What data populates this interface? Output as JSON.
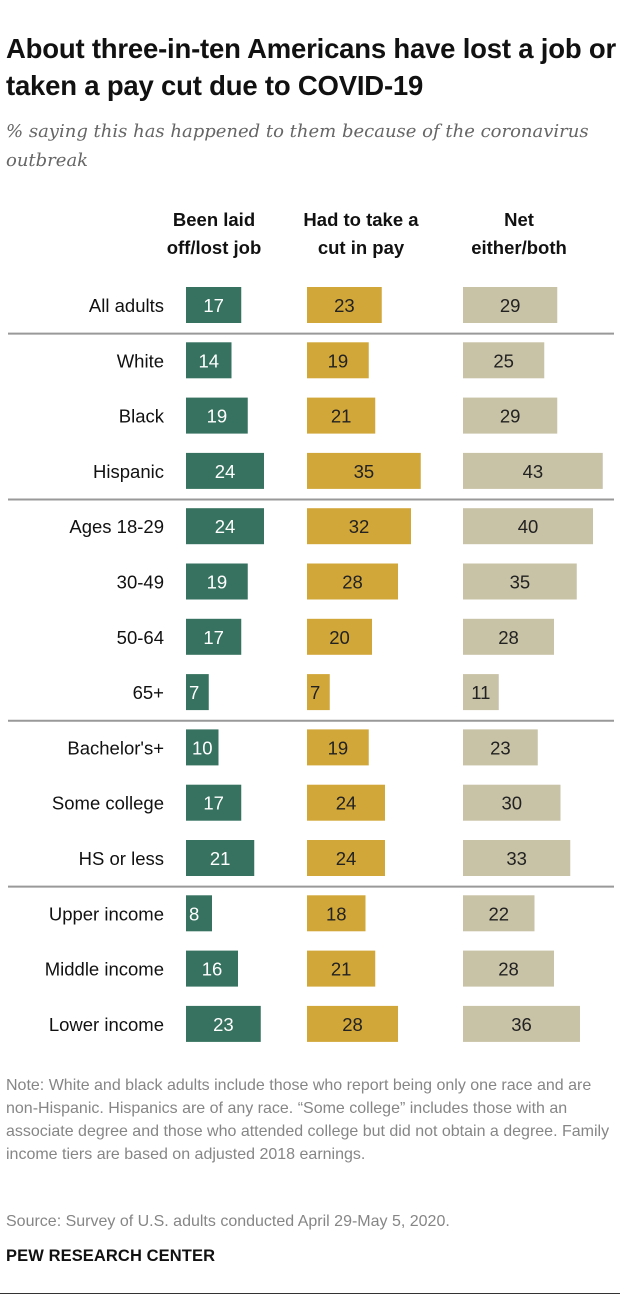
{
  "title": "About three-in-ten Americans have lost a job or taken a pay cut due to COVID-19",
  "subtitle": "% saying this has happened to them because of the coronavirus outbreak",
  "note": "Note: White and black adults include those who report being only one race and are non-Hispanic. Hispanics are of any race. “Some college” includes those with an associate degree and those who attended college but did not obtain a degree. Family income tiers are based on adjusted 2018 earnings.",
  "source": "Source: Survey of U.S. adults conducted April 29-May 5, 2020.",
  "brand": "PEW RESEARCH CENTER",
  "colors": {
    "laid_off": "#36725f",
    "pay_cut": "#d2a73a",
    "net": "#c8c2a6",
    "label_on_dark": "#ffffff",
    "label_on_light": "#222222",
    "divider": "#999999"
  },
  "chart_data": {
    "type": "bar",
    "orientation": "horizontal",
    "columns": [
      {
        "key": "laid_off",
        "header": [
          "Been laid",
          "off/lost job"
        ]
      },
      {
        "key": "pay_cut",
        "header": [
          "Had to take a",
          "cut in pay"
        ]
      },
      {
        "key": "net",
        "header": [
          "Net",
          "either/both"
        ]
      }
    ],
    "categories": [
      "All adults",
      "White",
      "Black",
      "Hispanic",
      "Ages 18-29",
      "30-49",
      "50-64",
      "65+",
      "Bachelor's+",
      "Some college",
      "HS or less",
      "Upper income",
      "Middle income",
      "Lower income"
    ],
    "group_breaks_after": [
      "All adults",
      "Hispanic",
      "65+",
      "HS or less"
    ],
    "series": [
      {
        "name": "Been laid off/lost job",
        "values": [
          17,
          14,
          19,
          24,
          24,
          19,
          17,
          7,
          10,
          17,
          21,
          8,
          16,
          23
        ]
      },
      {
        "name": "Had to take a cut in pay",
        "values": [
          23,
          19,
          21,
          35,
          32,
          28,
          20,
          7,
          19,
          24,
          24,
          18,
          21,
          28
        ]
      },
      {
        "name": "Net either/both",
        "values": [
          29,
          25,
          29,
          43,
          40,
          35,
          28,
          11,
          23,
          30,
          33,
          22,
          28,
          36
        ]
      }
    ],
    "data_labels": true,
    "grid": false
  }
}
